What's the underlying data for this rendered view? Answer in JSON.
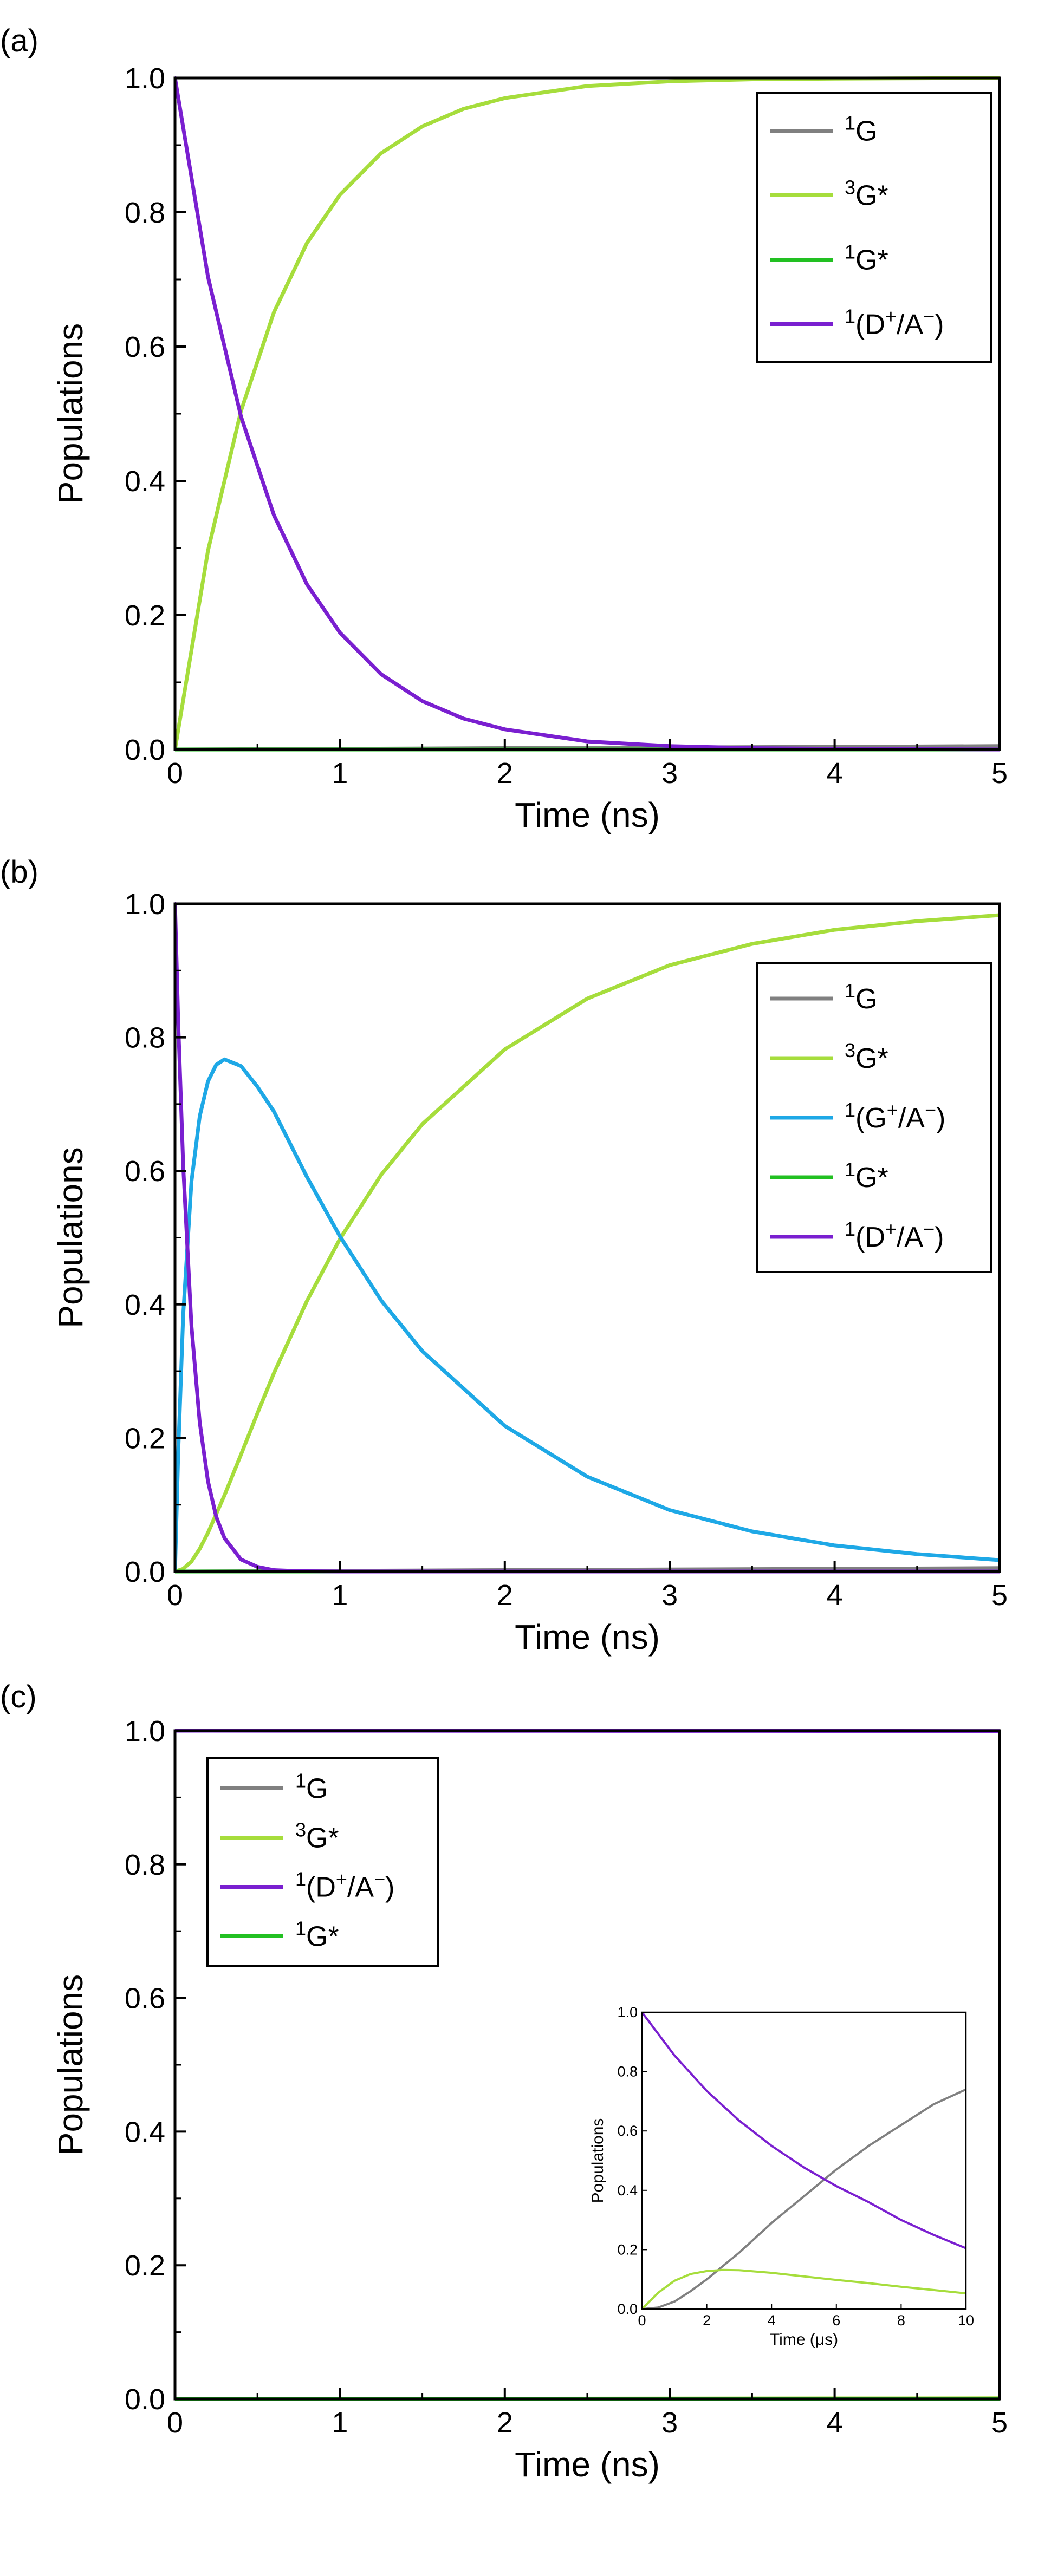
{
  "chart_data": [
    {
      "type": "line",
      "panel_label": "(a)",
      "xlabel": "Time (ns)",
      "ylabel": "Populations",
      "xlim": [
        0,
        5
      ],
      "ylim": [
        0,
        1
      ],
      "xticks": [
        "0",
        "1",
        "2",
        "3",
        "4",
        "5"
      ],
      "yticks": [
        "0.0",
        "0.2",
        "0.4",
        "0.6",
        "0.8",
        "1.0"
      ],
      "legend_position": "top-right",
      "series": [
        {
          "name": "1G",
          "sup": "1",
          "base": "G",
          "color": "#808080",
          "x": [
            0,
            1,
            2,
            3,
            4,
            5
          ],
          "values": [
            0,
            0.001,
            0.002,
            0.003,
            0.004,
            0.005
          ]
        },
        {
          "name": "3G*",
          "sup": "3",
          "base": "G*",
          "color": "#a6dd3c",
          "x": [
            0,
            0.2,
            0.4,
            0.6,
            0.8,
            1,
            1.25,
            1.5,
            1.75,
            2,
            2.5,
            3,
            3.5,
            4,
            4.5,
            5
          ],
          "values": [
            0,
            0.296,
            0.504,
            0.651,
            0.754,
            0.826,
            0.888,
            0.928,
            0.954,
            0.97,
            0.988,
            0.995,
            0.998,
            0.999,
            0.9995,
            1.0
          ]
        },
        {
          "name": "1G*",
          "sup": "1",
          "base": "G*",
          "color": "#22c022",
          "x": [
            0,
            5
          ],
          "values": [
            0,
            0
          ]
        },
        {
          "name": "1(D+/A-)",
          "sup": "1",
          "base": "(D",
          "color": "#7a1fd0",
          "x": [
            0,
            0.2,
            0.4,
            0.6,
            0.8,
            1,
            1.25,
            1.5,
            1.75,
            2,
            2.5,
            3,
            3.5,
            4,
            4.5,
            5
          ],
          "values": [
            1,
            0.704,
            0.496,
            0.349,
            0.246,
            0.174,
            0.112,
            0.072,
            0.046,
            0.03,
            0.012,
            0.005,
            0.002,
            0.001,
            0.0005,
            0
          ]
        }
      ]
    },
    {
      "type": "line",
      "panel_label": "(b)",
      "xlabel": "Time (ns)",
      "ylabel": "Populations",
      "xlim": [
        0,
        5
      ],
      "ylim": [
        0,
        1
      ],
      "xticks": [
        "0",
        "1",
        "2",
        "3",
        "4",
        "5"
      ],
      "yticks": [
        "0.0",
        "0.2",
        "0.4",
        "0.6",
        "0.8",
        "1.0"
      ],
      "legend_position": "top-right",
      "series": [
        {
          "name": "1G",
          "sup": "1",
          "base": "G",
          "color": "#808080",
          "x": [
            0,
            1,
            2,
            3,
            4,
            5
          ],
          "values": [
            0,
            0.001,
            0.002,
            0.003,
            0.004,
            0.005
          ]
        },
        {
          "name": "3G*",
          "sup": "3",
          "base": "G*",
          "color": "#a6dd3c",
          "x": [
            0,
            0.05,
            0.1,
            0.15,
            0.2,
            0.3,
            0.4,
            0.5,
            0.6,
            0.8,
            1,
            1.25,
            1.5,
            2,
            2.5,
            3,
            3.5,
            4,
            4.5,
            5
          ],
          "values": [
            0,
            0.004,
            0.015,
            0.034,
            0.058,
            0.114,
            0.175,
            0.237,
            0.297,
            0.405,
            0.498,
            0.594,
            0.67,
            0.782,
            0.858,
            0.908,
            0.94,
            0.961,
            0.974,
            0.983
          ]
        },
        {
          "name": "1(G+/A-)",
          "sup": "1",
          "base": "(G",
          "color": "#1ea8e6",
          "x": [
            0,
            0.02,
            0.05,
            0.1,
            0.15,
            0.2,
            0.25,
            0.3,
            0.4,
            0.5,
            0.6,
            0.8,
            1,
            1.25,
            1.5,
            2,
            2.5,
            3,
            3.5,
            4,
            4.5,
            5
          ],
          "values": [
            0,
            0.181,
            0.385,
            0.584,
            0.682,
            0.734,
            0.759,
            0.767,
            0.757,
            0.726,
            0.689,
            0.591,
            0.502,
            0.406,
            0.33,
            0.218,
            0.142,
            0.092,
            0.06,
            0.039,
            0.026,
            0.017
          ]
        },
        {
          "name": "1G*",
          "sup": "1",
          "base": "G*",
          "color": "#22c022",
          "x": [
            0,
            5
          ],
          "values": [
            0,
            0
          ]
        },
        {
          "name": "1(D+/A-)",
          "sup": "1",
          "base": "(D",
          "color": "#7a1fd0",
          "x": [
            0,
            0.02,
            0.05,
            0.1,
            0.15,
            0.2,
            0.25,
            0.3,
            0.4,
            0.5,
            0.6,
            0.7,
            0.8,
            1,
            1.5,
            5
          ],
          "values": [
            1,
            0.819,
            0.607,
            0.368,
            0.223,
            0.135,
            0.082,
            0.05,
            0.018,
            0.007,
            0.002,
            0.001,
            0.0004,
            0,
            0,
            0
          ]
        }
      ]
    },
    {
      "type": "line",
      "panel_label": "(c)",
      "xlabel": "Time (ns)",
      "ylabel": "Populations",
      "xlim": [
        0,
        5
      ],
      "ylim": [
        0,
        1
      ],
      "xticks": [
        "0",
        "1",
        "2",
        "3",
        "4",
        "5"
      ],
      "yticks": [
        "0.0",
        "0.2",
        "0.4",
        "0.6",
        "0.8",
        "1.0"
      ],
      "legend_position": "top-left",
      "series": [
        {
          "name": "1G",
          "sup": "1",
          "base": "G",
          "color": "#808080",
          "x": [
            0,
            5
          ],
          "values": [
            0,
            0
          ]
        },
        {
          "name": "3G*",
          "sup": "3",
          "base": "G*",
          "color": "#a6dd3c",
          "x": [
            0,
            5
          ],
          "values": [
            0,
            0.001
          ]
        },
        {
          "name": "1(D+/A-)",
          "sup": "1",
          "base": "(D",
          "color": "#7a1fd0",
          "x": [
            0,
            5
          ],
          "values": [
            1,
            0.9995
          ]
        },
        {
          "name": "1G*",
          "sup": "1",
          "base": "G*",
          "color": "#22c022",
          "x": [
            0,
            5
          ],
          "values": [
            0,
            0
          ]
        }
      ],
      "inset": {
        "xlabel": "Time (μs)",
        "ylabel": "Populations",
        "xlim": [
          0,
          10
        ],
        "ylim": [
          0,
          1
        ],
        "xticks": [
          "0",
          "2",
          "4",
          "6",
          "8",
          "10"
        ],
        "yticks": [
          "0.0",
          "0.2",
          "0.4",
          "0.6",
          "0.8",
          "1.0"
        ],
        "series": [
          {
            "name": "1G",
            "color": "#808080",
            "x": [
              0,
              0.5,
              1,
              1.5,
              2,
              3,
              4,
              5,
              6,
              7,
              8,
              9,
              10
            ],
            "values": [
              0,
              0.005,
              0.025,
              0.06,
              0.1,
              0.19,
              0.29,
              0.38,
              0.47,
              0.55,
              0.62,
              0.69,
              0.74
            ]
          },
          {
            "name": "3G*",
            "color": "#a6dd3c",
            "x": [
              0,
              0.5,
              1,
              1.5,
              2,
              2.5,
              3,
              4,
              5,
              6,
              7,
              8,
              9,
              10
            ],
            "values": [
              0,
              0.055,
              0.095,
              0.118,
              0.128,
              0.132,
              0.131,
              0.122,
              0.11,
              0.098,
              0.087,
              0.075,
              0.064,
              0.053
            ]
          },
          {
            "name": "1(D+/A-)",
            "color": "#7a1fd0",
            "x": [
              0,
              1,
              2,
              3,
              4,
              5,
              6,
              7,
              8,
              9,
              10
            ],
            "values": [
              1,
              0.855,
              0.735,
              0.635,
              0.55,
              0.477,
              0.414,
              0.36,
              0.3,
              0.25,
              0.205
            ]
          },
          {
            "name": "1G*",
            "color": "#22c022",
            "x": [
              0,
              10
            ],
            "values": [
              0,
              0
            ]
          }
        ]
      }
    }
  ]
}
